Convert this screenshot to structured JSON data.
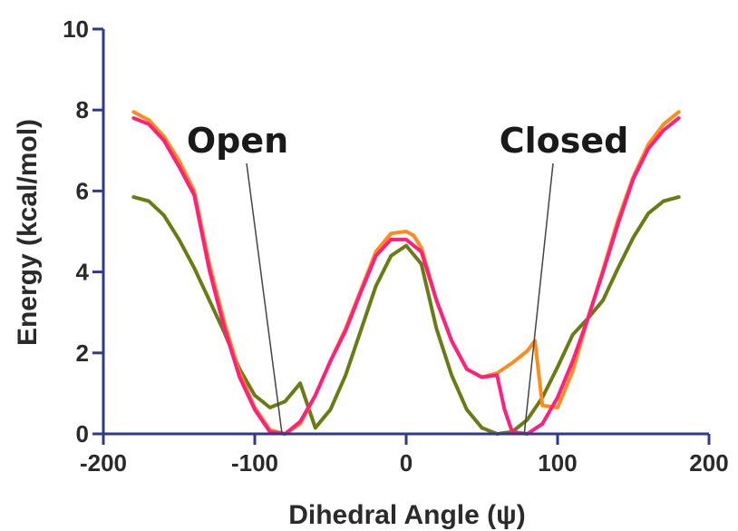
{
  "chart_data": {
    "type": "line",
    "title": "",
    "xlabel": "Dihedral Angle (ψ)",
    "ylabel": "Energy (kcal/mol)",
    "xlim": [
      -200,
      200
    ],
    "ylim": [
      0,
      10
    ],
    "xticks": [
      -200,
      -100,
      0,
      100,
      200
    ],
    "yticks": [
      0,
      2,
      4,
      6,
      8,
      10
    ],
    "xtick_labels": [
      "-200",
      "-100",
      "0",
      "100",
      "200"
    ],
    "ytick_labels": [
      "0",
      "2",
      "4",
      "6",
      "8",
      "10"
    ],
    "grid": false,
    "legend": "none",
    "axis_color": "#2e3a8c",
    "series": [
      {
        "color": "#6b7a12",
        "x": [
          -180,
          -170,
          -160,
          -150,
          -140,
          -130,
          -120,
          -110,
          -100,
          -90,
          -80,
          -70,
          -60,
          -50,
          -40,
          -30,
          -20,
          -10,
          0,
          10,
          20,
          30,
          40,
          50,
          60,
          70,
          80,
          90,
          100,
          110,
          120,
          130,
          140,
          150,
          160,
          170,
          180
        ],
        "y": [
          5.85,
          5.75,
          5.4,
          4.8,
          4.1,
          3.3,
          2.5,
          1.6,
          0.95,
          0.65,
          0.8,
          1.25,
          0.15,
          0.6,
          1.45,
          2.55,
          3.65,
          4.4,
          4.65,
          4.2,
          2.6,
          1.45,
          0.6,
          0.15,
          0.0,
          0.05,
          0.35,
          0.9,
          1.65,
          2.45,
          2.85,
          3.3,
          4.1,
          4.85,
          5.45,
          5.75,
          5.85
        ]
      },
      {
        "color": "#ff8c1a",
        "x": [
          -180,
          -170,
          -160,
          -150,
          -140,
          -130,
          -120,
          -110,
          -100,
          -90,
          -80,
          -70,
          -60,
          -50,
          -40,
          -30,
          -20,
          -10,
          0,
          5,
          10,
          20,
          30,
          40,
          50,
          60,
          70,
          80,
          85,
          90,
          100,
          110,
          120,
          130,
          140,
          150,
          160,
          170,
          180
        ],
        "y": [
          7.95,
          7.75,
          7.35,
          6.75,
          6.0,
          4.2,
          2.75,
          1.5,
          0.65,
          0.1,
          0.0,
          0.25,
          0.95,
          1.8,
          2.6,
          3.55,
          4.5,
          4.95,
          5.0,
          4.9,
          4.6,
          3.3,
          2.3,
          1.6,
          1.4,
          1.5,
          1.75,
          2.05,
          2.3,
          0.7,
          0.65,
          1.55,
          2.85,
          4.05,
          5.3,
          6.35,
          7.15,
          7.65,
          7.95
        ]
      },
      {
        "color": "#ff1f7f",
        "x": [
          -180,
          -170,
          -160,
          -150,
          -140,
          -130,
          -120,
          -110,
          -100,
          -90,
          -80,
          -70,
          -60,
          -50,
          -40,
          -30,
          -20,
          -10,
          0,
          5,
          10,
          20,
          30,
          40,
          50,
          60,
          65,
          70,
          80,
          90,
          100,
          110,
          120,
          130,
          140,
          150,
          160,
          170,
          180
        ],
        "y": [
          7.8,
          7.65,
          7.25,
          6.6,
          5.9,
          4.05,
          2.6,
          1.4,
          0.6,
          0.05,
          0.0,
          0.3,
          0.95,
          1.8,
          2.55,
          3.5,
          4.4,
          4.8,
          4.8,
          4.65,
          4.5,
          3.3,
          2.3,
          1.6,
          1.4,
          1.45,
          0.6,
          0.05,
          0.0,
          0.25,
          0.9,
          1.8,
          2.85,
          4.0,
          5.2,
          6.3,
          7.05,
          7.5,
          7.8
        ]
      }
    ],
    "annotations": [
      {
        "text": "Open",
        "x": -82,
        "y": 0
      },
      {
        "text": "Closed",
        "x": 78,
        "y": 0
      }
    ]
  }
}
